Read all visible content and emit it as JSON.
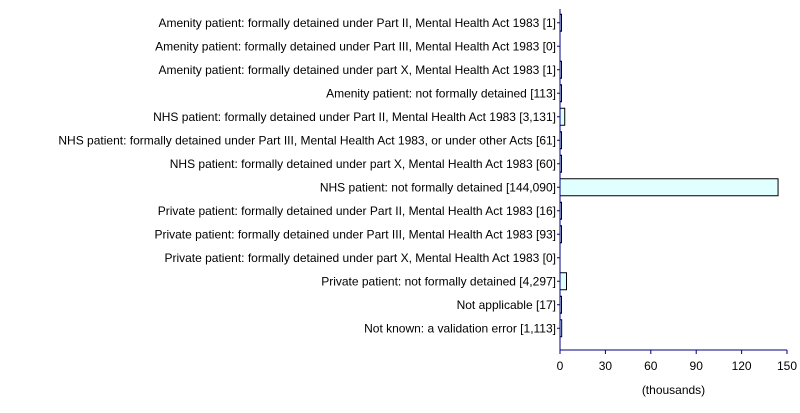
{
  "chart_data": {
    "type": "bar",
    "orientation": "horizontal",
    "categories": [
      "Amenity patient: formally detained under Part II, Mental Health Act 1983 [1]",
      "Amenity patient: formally detained under Part III, Mental Health Act 1983 [0]",
      "Amenity patient: formally detained under part X, Mental Health Act 1983 [1]",
      "Amenity patient: not formally detained [113]",
      "NHS patient: formally detained under Part II, Mental Health Act 1983 [3,131]",
      "NHS patient: formally detained under Part III, Mental Health Act 1983, or under other Acts [61]",
      "NHS patient: formally detained under part X, Mental Health Act 1983 [60]",
      "NHS patient: not formally detained [144,090]",
      "Private patient: formally detained under Part II, Mental Health Act 1983 [16]",
      "Private patient: formally detained under Part III, Mental Health Act 1983 [93]",
      "Private patient: formally detained under part X, Mental Health Act 1983 [0]",
      "Private patient: not formally detained [4,297]",
      "Not applicable [17]",
      "Not known: a validation error [1,113]"
    ],
    "values": [
      1,
      0,
      1,
      113,
      3131,
      61,
      60,
      144090,
      16,
      93,
      0,
      4297,
      17,
      1113
    ],
    "xlabel": "(thousands)",
    "xlim": [
      0,
      150000
    ],
    "ticks": [
      0,
      30000,
      60000,
      90000,
      120000,
      150000
    ],
    "tick_labels": [
      "0",
      "30",
      "60",
      "90",
      "120",
      "150"
    ],
    "grid": false,
    "colors": {
      "bar_fill": "#e0ffff",
      "bar_stroke": "#000000",
      "axis": "#000080",
      "text": "#000000"
    }
  }
}
